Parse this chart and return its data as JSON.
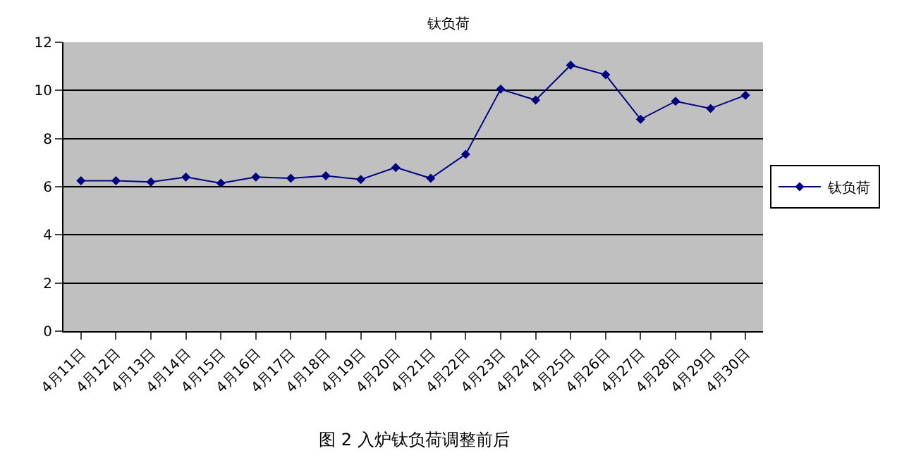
{
  "chart_data": {
    "type": "line",
    "title": "钛负荷",
    "categories": [
      "4月11日",
      "4月12日",
      "4月13日",
      "4月14日",
      "4月15日",
      "4月16日",
      "4月17日",
      "4月18日",
      "4月19日",
      "4月20日",
      "4月21日",
      "4月22日",
      "4月23日",
      "4月24日",
      "4月25日",
      "4月26日",
      "4月27日",
      "4月28日",
      "4月29日",
      "4月30日"
    ],
    "series": [
      {
        "name": "钛负荷",
        "color": "#000080",
        "values": [
          6.25,
          6.25,
          6.2,
          6.4,
          6.15,
          6.4,
          6.35,
          6.45,
          6.3,
          6.8,
          6.35,
          7.35,
          10.05,
          9.6,
          11.05,
          10.65,
          8.8,
          9.55,
          9.25,
          9.8
        ]
      }
    ],
    "ylim": [
      0,
      12
    ],
    "yticks": [
      0,
      2,
      4,
      6,
      8,
      10,
      12
    ],
    "grid": "y",
    "legend": "right",
    "marker": "diamond",
    "line_style": "solid",
    "annotations": [
      "图 2 入炉钛负荷调整前后"
    ]
  }
}
